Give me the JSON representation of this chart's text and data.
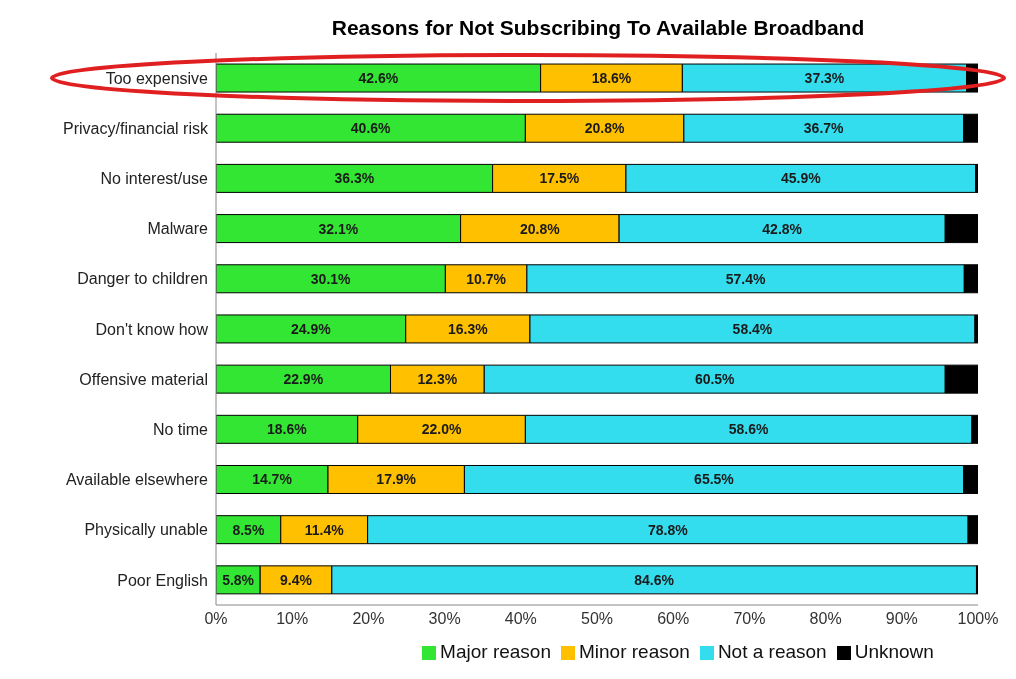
{
  "chart_data": {
    "type": "bar",
    "orientation": "horizontal",
    "stacked": true,
    "title": "Reasons for Not Subscribing To Available Broadband",
    "categories": [
      "Too expensive",
      "Privacy/financial risk",
      "No interest/use",
      "Malware",
      "Danger to children",
      "Don't know how",
      "Offensive material",
      "No time",
      "Available elsewhere",
      "Physically unable",
      "Poor English"
    ],
    "series": [
      {
        "name": "Major reason",
        "color": "#33e633",
        "values": [
          42.6,
          40.6,
          36.3,
          32.1,
          30.1,
          24.9,
          22.9,
          18.6,
          14.7,
          8.5,
          5.8
        ],
        "value_labels": [
          "42.6%",
          "40.6%",
          "36.3%",
          "32.1%",
          "30.1%",
          "24.9%",
          "22.9%",
          "18.6%",
          "14.7%",
          "8.5%",
          "5.8%"
        ]
      },
      {
        "name": "Minor reason",
        "color": "#ffc000",
        "values": [
          18.6,
          20.8,
          17.5,
          20.8,
          10.7,
          16.3,
          12.3,
          22.0,
          17.9,
          11.4,
          9.4
        ],
        "value_labels": [
          "18.6%",
          "20.8%",
          "17.5%",
          "20.8%",
          "10.7%",
          "16.3%",
          "12.3%",
          "22.0%",
          "17.9%",
          "11.4%",
          "9.4%"
        ]
      },
      {
        "name": "Not a reason",
        "color": "#33ddee",
        "values": [
          37.3,
          36.7,
          45.9,
          42.8,
          57.4,
          58.4,
          60.5,
          58.6,
          65.5,
          78.8,
          84.6
        ],
        "value_labels": [
          "37.3%",
          "36.7%",
          "45.9%",
          "42.8%",
          "57.4%",
          "58.4%",
          "60.5%",
          "58.6%",
          "65.5%",
          "78.8%",
          "84.6%"
        ]
      },
      {
        "name": "Unknown",
        "color": "#000000",
        "values": [
          1.5,
          1.9,
          0.3,
          4.3,
          1.8,
          0.4,
          4.3,
          0.8,
          1.9,
          1.3,
          0.2
        ]
      }
    ],
    "xlim": [
      0,
      100
    ],
    "xticks": [
      {
        "value": 0,
        "label": "0%"
      },
      {
        "value": 10,
        "label": "10%"
      },
      {
        "value": 20,
        "label": "20%"
      },
      {
        "value": 30,
        "label": "30%"
      },
      {
        "value": 40,
        "label": "40%"
      },
      {
        "value": 50,
        "label": "50%"
      },
      {
        "value": 60,
        "label": "60%"
      },
      {
        "value": 70,
        "label": "70%"
      },
      {
        "value": 80,
        "label": "80%"
      },
      {
        "value": 90,
        "label": "90%"
      },
      {
        "value": 100,
        "label": "100%"
      }
    ],
    "legend": "bottom"
  }
}
